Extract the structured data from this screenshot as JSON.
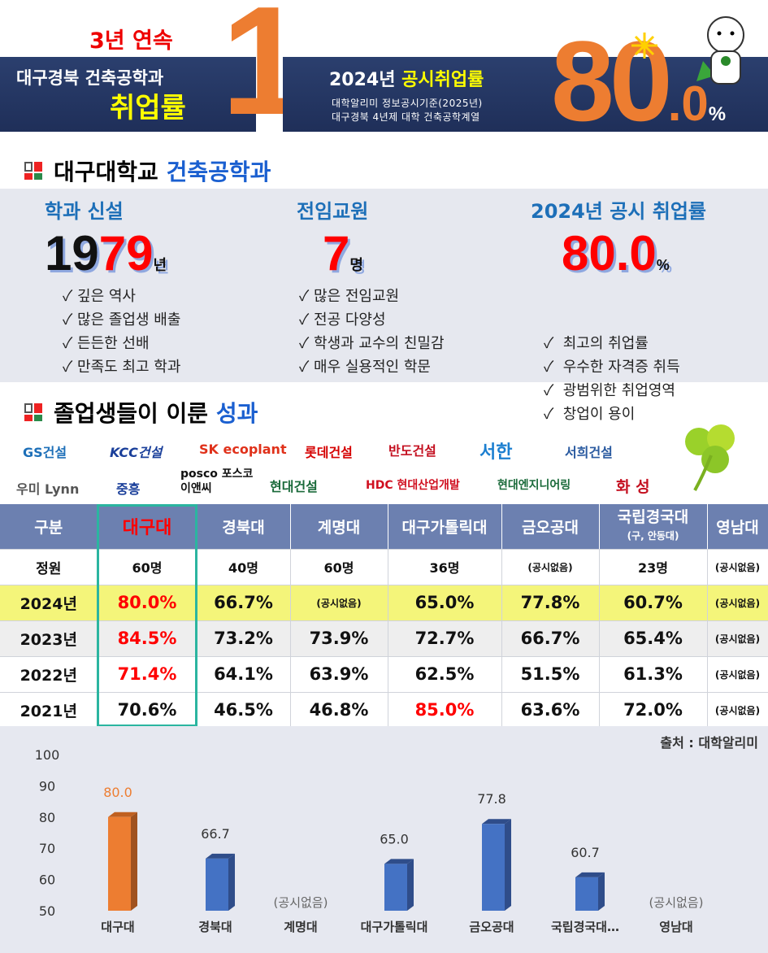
{
  "banner": {
    "streak": "3년 연속",
    "left_line1": "대구경북 건축공학과",
    "left_line2": "취업률",
    "rank": "1",
    "right_title_year": "2024년",
    "right_title_hl": "공시취업률",
    "source_line1": "대학알리미 정보공시기준(2025년)",
    "source_line2": "대구경북 4년제 대학 건축공학계열",
    "big_int": "80",
    "big_dot": ".",
    "big_dec": "0",
    "big_pct": "%"
  },
  "section1": {
    "title_a": "대구대학교",
    "title_b": "건축공학과",
    "cards": [
      {
        "label": "학과 신설",
        "value_a": "19",
        "value_b": "79",
        "unit": "년",
        "points": [
          "✓ 깊은 역사",
          "✓ 많은 졸업생 배출",
          "✓ 든든한 선배",
          "✓ 만족도 최고 학과"
        ]
      },
      {
        "label": "전임교원",
        "value_a": "",
        "value_b": "7",
        "unit": "명",
        "points": [
          "✓ 많은 전임교원",
          "✓ 전공 다양성",
          "✓ 학생과 교수의 친밀감",
          "✓ 매우 실용적인 학문"
        ]
      },
      {
        "label": "2024년 공시 취업률",
        "value_a": "",
        "value_b": "80.0",
        "unit": "%",
        "points": [
          "✓  최고의 취업률",
          "✓  우수한 자격증 취득",
          "✓  광범위한 취업영역",
          "✓  창업이 용이"
        ]
      }
    ]
  },
  "section2": {
    "title_a": "졸업생들이 이룬",
    "title_b": "성과"
  },
  "logos": [
    "GS건설",
    "KCC건설",
    "SK ecoplant",
    "롯데건설",
    "반도건설",
    "서한",
    "서희건설",
    "우미 Lynn",
    "중흥",
    "posco 포스코이앤씨",
    "현대건설",
    "HDC 현대산업개발",
    "현대엔지니어링",
    "화 성"
  ],
  "colors": {
    "accent_orange": "#ed7d31",
    "bar_blue": "#4472c4",
    "header_blue": "#6c80b0",
    "highlight_row": "#f4f57a",
    "teal_box": "#2bb5a0"
  },
  "table": {
    "headers": [
      "구분",
      "대구대",
      "경북대",
      "계명대",
      "대구가톨릭대",
      "금오공대",
      "국립경국대",
      "영남대"
    ],
    "header_sub": "(구, 안동대)",
    "rows": [
      {
        "label": "정원",
        "unit": "",
        "cells": [
          "60명",
          "40명",
          "60명",
          "36명",
          "(공시없음)",
          "23명",
          "(공시없음)"
        ]
      },
      {
        "label": "2024년",
        "cells": [
          "80.0%",
          "66.7%",
          "(공시없음)",
          "65.0%",
          "77.8%",
          "60.7%",
          "(공시없음)"
        ]
      },
      {
        "label": "2023년",
        "cells": [
          "84.5%",
          "73.2%",
          "73.9%",
          "72.7%",
          "66.7%",
          "65.4%",
          "(공시없음)"
        ]
      },
      {
        "label": "2022년",
        "cells": [
          "71.4%",
          "64.1%",
          "63.9%",
          "62.5%",
          "51.5%",
          "61.3%",
          "(공시없음)"
        ]
      },
      {
        "label": "2021년",
        "cells": [
          "70.6%",
          "46.5%",
          "46.8%",
          "85.0%",
          "63.6%",
          "72.0%",
          "(공시없음)"
        ]
      }
    ]
  },
  "source": "출처 : 대학알리미",
  "chart_data": {
    "type": "bar",
    "categories": [
      "대구대",
      "경북대",
      "계명대",
      "대구가톨릭대",
      "금오공대",
      "국립경국대…",
      "영남대"
    ],
    "values": [
      80.0,
      66.7,
      null,
      65.0,
      77.8,
      60.7,
      null
    ],
    "value_labels": [
      "80.0",
      "66.7",
      "(공시없음)",
      "65.0",
      "77.8",
      "60.7",
      "(공시없음)"
    ],
    "ylim": [
      50,
      100
    ],
    "yticks": [
      "100",
      "90",
      "80",
      "70",
      "60",
      "50"
    ],
    "grid": false,
    "highlight_index": 0
  }
}
